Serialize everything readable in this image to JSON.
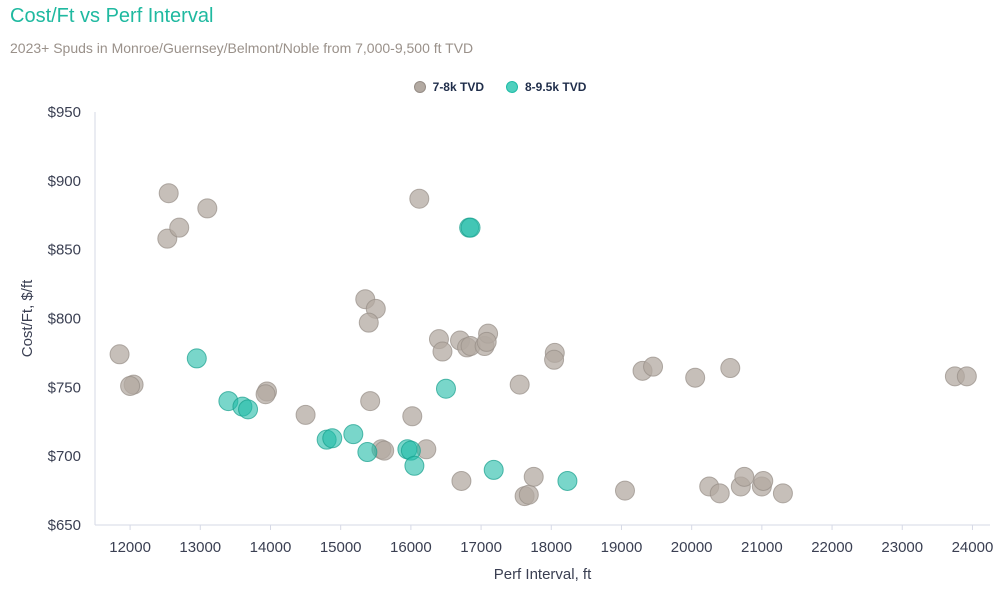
{
  "chart_data": {
    "type": "scatter",
    "title": "Cost/Ft vs Perf Interval",
    "subtitle": "2023+ Spuds in Monroe/Guernsey/Belmont/Noble from 7,000-9,500 ft TVD",
    "xlabel": "Perf Interval, ft",
    "ylabel": "Cost/Ft, $/ft",
    "xlim": [
      11500,
      24250
    ],
    "ylim": [
      650,
      950
    ],
    "x_ticks": [
      12000,
      13000,
      14000,
      15000,
      16000,
      17000,
      18000,
      19000,
      20000,
      21000,
      22000,
      23000,
      24000
    ],
    "y_ticks": [
      650,
      700,
      750,
      800,
      850,
      900,
      950
    ],
    "y_tick_labels": [
      "$650",
      "$700",
      "$750",
      "$800",
      "$850",
      "$900",
      "$950"
    ],
    "legend_position": "top-center",
    "series": [
      {
        "name": "7-8k TVD",
        "color": "#b3aaa2",
        "stroke": "#968d86",
        "points": [
          [
            11850,
            774
          ],
          [
            12050,
            752
          ],
          [
            12000,
            751
          ],
          [
            12550,
            891
          ],
          [
            12530,
            858
          ],
          [
            12700,
            866
          ],
          [
            13100,
            880
          ],
          [
            13950,
            747
          ],
          [
            13930,
            745
          ],
          [
            14500,
            730
          ],
          [
            15350,
            814
          ],
          [
            15500,
            807
          ],
          [
            15400,
            797
          ],
          [
            15420,
            740
          ],
          [
            15580,
            705
          ],
          [
            15620,
            704
          ],
          [
            16020,
            729
          ],
          [
            16120,
            887
          ],
          [
            16220,
            705
          ],
          [
            16400,
            785
          ],
          [
            16450,
            776
          ],
          [
            16700,
            784
          ],
          [
            16720,
            682
          ],
          [
            16800,
            779
          ],
          [
            16850,
            780
          ],
          [
            17050,
            780
          ],
          [
            17100,
            789
          ],
          [
            17080,
            783
          ],
          [
            17550,
            752
          ],
          [
            17620,
            671
          ],
          [
            17680,
            672
          ],
          [
            17750,
            685
          ],
          [
            18050,
            775
          ],
          [
            18040,
            770
          ],
          [
            19050,
            675
          ],
          [
            19300,
            762
          ],
          [
            19450,
            765
          ],
          [
            20050,
            757
          ],
          [
            20250,
            678
          ],
          [
            20400,
            673
          ],
          [
            20550,
            764
          ],
          [
            20700,
            678
          ],
          [
            20750,
            685
          ],
          [
            21000,
            678
          ],
          [
            21020,
            682
          ],
          [
            21300,
            673
          ],
          [
            23750,
            758
          ],
          [
            23920,
            758
          ]
        ]
      },
      {
        "name": "8-9.5k TVD",
        "color": "#1fbba6",
        "stroke": "#169e8c",
        "points": [
          [
            12950,
            771
          ],
          [
            13400,
            740
          ],
          [
            13600,
            736
          ],
          [
            13680,
            734
          ],
          [
            14800,
            712
          ],
          [
            14880,
            713
          ],
          [
            15180,
            716
          ],
          [
            15380,
            703
          ],
          [
            15950,
            705
          ],
          [
            16000,
            704
          ],
          [
            16050,
            693
          ],
          [
            16500,
            749
          ],
          [
            16830,
            866
          ],
          [
            16850,
            866
          ],
          [
            17180,
            690
          ],
          [
            18230,
            682
          ]
        ]
      }
    ]
  }
}
